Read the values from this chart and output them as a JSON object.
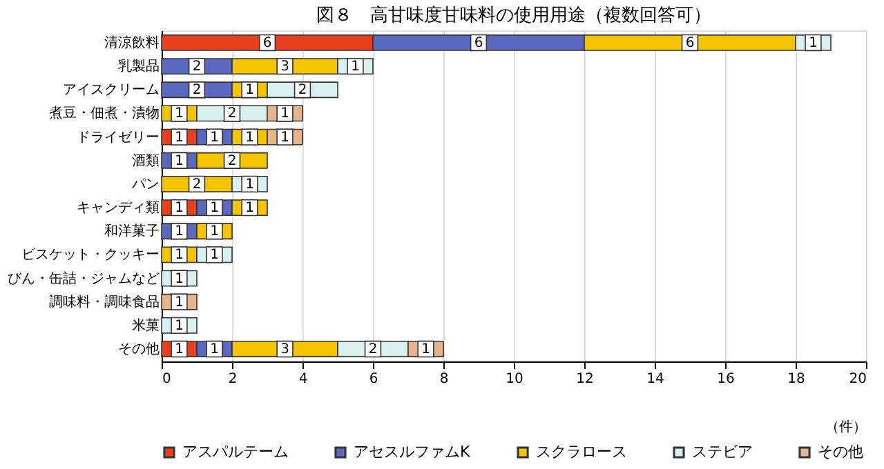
{
  "chart_data": {
    "type": "bar",
    "orientation": "horizontal",
    "stacked": true,
    "data_labels": true,
    "title": "図８　高甘味度甘味料の使用用途（複数回答可）",
    "xlabel": "（件）",
    "categories": [
      "清涼飲料",
      "乳製品",
      "アイスクリーム",
      "煮豆・佃煮・漬物",
      "ドライゼリー",
      "酒類",
      "パン",
      "キャンディ類",
      "和洋菓子",
      "ビスケット・クッキー",
      "びん・缶詰・ジャムなど",
      "調味料・調味食品",
      "米菓",
      "その他"
    ],
    "series": [
      {
        "name": "アスパルテーム",
        "color": "#e8401c",
        "values": [
          6,
          null,
          null,
          null,
          1,
          null,
          null,
          1,
          null,
          null,
          null,
          null,
          null,
          1
        ]
      },
      {
        "name": "アセスルファムK",
        "color": "#5a68c0",
        "values": [
          6,
          2,
          2,
          null,
          1,
          1,
          null,
          1,
          1,
          null,
          null,
          null,
          null,
          1
        ]
      },
      {
        "name": "スクラロース",
        "color": "#f5c400",
        "values": [
          6,
          3,
          1,
          1,
          1,
          2,
          2,
          1,
          1,
          1,
          null,
          null,
          null,
          3
        ]
      },
      {
        "name": "ステビア",
        "color": "#d8f0f0",
        "values": [
          1,
          1,
          2,
          2,
          null,
          null,
          1,
          null,
          null,
          1,
          1,
          null,
          1,
          2
        ]
      },
      {
        "name": "その他",
        "color": "#e8b48c",
        "values": [
          null,
          null,
          null,
          1,
          1,
          null,
          null,
          null,
          null,
          null,
          null,
          1,
          null,
          1
        ]
      }
    ],
    "xlim": [
      0,
      20
    ],
    "xticks": [
      0,
      2,
      4,
      6,
      8,
      10,
      12,
      14,
      16,
      18,
      20
    ],
    "grid": "x",
    "legend": "bottom"
  }
}
